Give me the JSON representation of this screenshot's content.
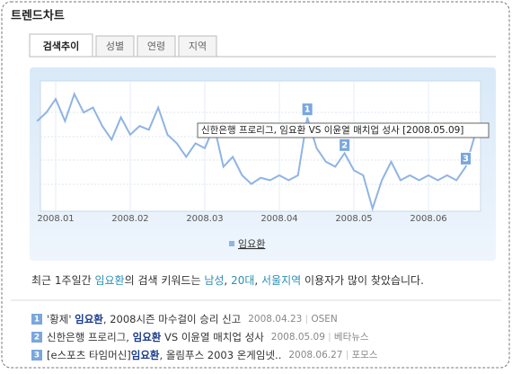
{
  "header": {
    "title": "트렌드차트"
  },
  "tabs": [
    "검색추이",
    "성별",
    "연령",
    "지역"
  ],
  "chart_data": {
    "type": "line",
    "categories": [
      null,
      null,
      "2008.01",
      null,
      null,
      null,
      null,
      null,
      null,
      null,
      "2008.02",
      null,
      null,
      null,
      null,
      null,
      null,
      null,
      "2008.03",
      null,
      null,
      null,
      null,
      null,
      null,
      null,
      "2008.04",
      null,
      null,
      null,
      null,
      null,
      null,
      null,
      "2008.05",
      null,
      null,
      null,
      null,
      null,
      null,
      null,
      "2008.06",
      null,
      null,
      null,
      null,
      null
    ],
    "series": [
      {
        "name": "임요환",
        "color": "#8fb4e3",
        "values": [
          71,
          78,
          89,
          71,
          93,
          78,
          82,
          67,
          56,
          74,
          60,
          67,
          64,
          82,
          60,
          53,
          42,
          53,
          49,
          67,
          34,
          42,
          27,
          20,
          25,
          23,
          27,
          23,
          27,
          74,
          49,
          38,
          34,
          45,
          31,
          27,
          0,
          23,
          38,
          23,
          27,
          23,
          27,
          23,
          27,
          23,
          34,
          60
        ]
      }
    ],
    "ylim": [
      0,
      100
    ],
    "annotations": [
      "1",
      "2",
      "3"
    ],
    "tooltip": "신한은행 프로리그, 임요환 VS 이윤열 매치업 성사 [2008.05.09]"
  },
  "summary": [
    "최근 1주일간 ",
    "임요환",
    "의 검색 키워드는 ",
    "남성",
    ", ",
    "20대",
    ", ",
    "서울지역",
    " 이용자가 많이 찾았습니다."
  ],
  "news": [
    {
      "number": "1",
      "title": [
        "'황제' ",
        "임요환",
        ", 2008시즌 마수걸이 승리 신고"
      ],
      "date": "2008.04.23",
      "source": "OSEN"
    },
    {
      "number": "2",
      "title": [
        "신한은행 프로리그, ",
        "임요환",
        " VS 이윤열 매치업 성사"
      ],
      "date": "2008.05.09",
      "source": "베타뉴스"
    },
    {
      "number": "3",
      "title": [
        "[e스포츠 타임머신]",
        "임요환",
        ", 올림푸스 2003 온게임넷.."
      ],
      "date": "2008.06.27",
      "source": "포모스"
    }
  ]
}
